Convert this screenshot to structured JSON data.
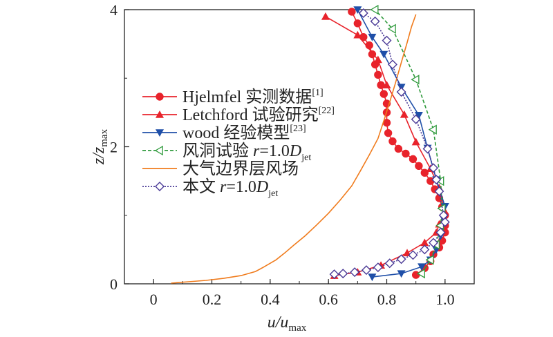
{
  "chart_data": {
    "type": "line",
    "xlabel": {
      "main": "u/u",
      "sub": "max"
    },
    "ylabel": {
      "main": "z/z",
      "sub": "max"
    },
    "xlim": [
      -0.1,
      1.1
    ],
    "ylim": [
      0,
      4
    ],
    "xticks": [
      "0",
      "0.2",
      "0.4",
      "0.6",
      "0.8",
      "1.0"
    ],
    "xtick_values": [
      0,
      0.2,
      0.4,
      0.6,
      0.8,
      1.0
    ],
    "yticks": [
      "0",
      "2",
      "4"
    ],
    "ytick_values": [
      0,
      2,
      4
    ],
    "grid": false,
    "legend_position": "left-middle",
    "series": [
      {
        "name": "Hjelmfel 实测数据",
        "sup": "[1]",
        "color": "#e8232b",
        "marker": "circle",
        "dash": "",
        "points": [
          [
            0.9,
            0.13
          ],
          [
            0.93,
            0.23
          ],
          [
            0.95,
            0.33
          ],
          [
            0.96,
            0.43
          ],
          [
            0.98,
            0.53
          ],
          [
            0.99,
            0.63
          ],
          [
            1.0,
            0.75
          ],
          [
            1.0,
            0.85
          ],
          [
            1.0,
            1.0
          ],
          [
            0.99,
            1.12
          ],
          [
            0.98,
            1.25
          ],
          [
            0.965,
            1.38
          ],
          [
            0.95,
            1.5
          ],
          [
            0.93,
            1.62
          ],
          [
            0.91,
            1.72
          ],
          [
            0.89,
            1.82
          ],
          [
            0.865,
            1.9
          ],
          [
            0.84,
            1.97
          ],
          [
            0.82,
            2.08
          ],
          [
            0.805,
            2.2
          ],
          [
            0.8,
            2.35
          ],
          [
            0.8,
            2.5
          ],
          [
            0.8,
            2.63
          ],
          [
            0.79,
            2.77
          ],
          [
            0.78,
            2.9
          ],
          [
            0.77,
            3.05
          ],
          [
            0.76,
            3.2
          ],
          [
            0.75,
            3.35
          ],
          [
            0.74,
            3.48
          ],
          [
            0.72,
            3.6
          ],
          [
            0.7,
            3.8
          ],
          [
            0.68,
            3.97
          ]
        ]
      },
      {
        "name": "Letchford 试验研究",
        "sup": "[22]",
        "color": "#e8232b",
        "marker": "triangle-up",
        "dash": "",
        "points": [
          [
            0.62,
            0.12
          ],
          [
            0.7,
            0.17
          ],
          [
            0.78,
            0.27
          ],
          [
            0.87,
            0.45
          ],
          [
            0.93,
            0.6
          ],
          [
            0.97,
            0.75
          ],
          [
            0.98,
            0.87
          ],
          [
            1.0,
            1.05
          ],
          [
            0.98,
            1.4
          ],
          [
            0.95,
            1.68
          ],
          [
            0.9,
            2.07
          ],
          [
            0.86,
            2.47
          ],
          [
            0.8,
            2.9
          ],
          [
            0.77,
            3.27
          ],
          [
            0.7,
            3.63
          ],
          [
            0.59,
            3.9
          ]
        ]
      },
      {
        "name": "wood 经验模型",
        "sup": "[23]",
        "color": "#1f4fa8",
        "marker": "triangle-down",
        "dash": "",
        "points": [
          [
            0.75,
            0.1
          ],
          [
            0.85,
            0.15
          ],
          [
            0.92,
            0.25
          ],
          [
            0.95,
            0.35
          ],
          [
            0.97,
            0.5
          ],
          [
            0.985,
            0.7
          ],
          [
            0.995,
            0.95
          ],
          [
            1.0,
            1.13
          ],
          [
            0.97,
            1.52
          ],
          [
            0.94,
            1.98
          ],
          [
            0.91,
            2.46
          ],
          [
            0.85,
            2.87
          ],
          [
            0.79,
            3.35
          ],
          [
            0.75,
            3.6
          ],
          [
            0.7,
            4.0
          ]
        ]
      },
      {
        "name": "风洞试验 ",
        "italic_part": "r",
        "tail": "=1.0",
        "tail_italic": "D",
        "sub": "jet",
        "color": "#2f9a3c",
        "marker": "triangle-left-open",
        "dash": "5,3",
        "points": [
          [
            0.92,
            0.15
          ],
          [
            0.95,
            0.35
          ],
          [
            0.97,
            0.57
          ],
          [
            0.985,
            0.85
          ],
          [
            0.99,
            1.1
          ],
          [
            0.985,
            1.5
          ],
          [
            0.96,
            2.25
          ],
          [
            0.9,
            2.98
          ],
          [
            0.82,
            3.72
          ],
          [
            0.76,
            4.0
          ]
        ]
      },
      {
        "name": "大气边界层风场",
        "color": "#f07b1c",
        "marker": "none",
        "dash": "",
        "points": [
          [
            0.06,
            0.01
          ],
          [
            0.12,
            0.03
          ],
          [
            0.18,
            0.05
          ],
          [
            0.24,
            0.08
          ],
          [
            0.3,
            0.12
          ],
          [
            0.35,
            0.18
          ],
          [
            0.38,
            0.25
          ],
          [
            0.42,
            0.35
          ],
          [
            0.45,
            0.45
          ],
          [
            0.48,
            0.56
          ],
          [
            0.52,
            0.7
          ],
          [
            0.56,
            0.86
          ],
          [
            0.6,
            1.03
          ],
          [
            0.64,
            1.22
          ],
          [
            0.68,
            1.43
          ],
          [
            0.71,
            1.65
          ],
          [
            0.74,
            1.88
          ],
          [
            0.77,
            2.12
          ],
          [
            0.79,
            2.38
          ],
          [
            0.81,
            2.65
          ],
          [
            0.83,
            2.93
          ],
          [
            0.85,
            3.23
          ],
          [
            0.87,
            3.52
          ],
          [
            0.885,
            3.75
          ],
          [
            0.9,
            3.93
          ]
        ]
      },
      {
        "name": "本文 ",
        "italic_part": "r",
        "tail": "=1.0",
        "tail_italic": "D",
        "sub": "jet",
        "color": "#4a3a96",
        "marker": "diamond-open",
        "dash": "2,2",
        "points": [
          [
            0.62,
            0.14
          ],
          [
            0.65,
            0.15
          ],
          [
            0.69,
            0.17
          ],
          [
            0.73,
            0.2
          ],
          [
            0.77,
            0.24
          ],
          [
            0.81,
            0.3
          ],
          [
            0.85,
            0.36
          ],
          [
            0.89,
            0.42
          ],
          [
            0.93,
            0.5
          ],
          [
            0.96,
            0.6
          ],
          [
            0.985,
            0.75
          ],
          [
            1.0,
            0.9
          ],
          [
            0.995,
            1.0
          ],
          [
            0.98,
            1.35
          ],
          [
            0.97,
            1.52
          ],
          [
            0.96,
            1.69
          ],
          [
            0.94,
            1.97
          ],
          [
            0.9,
            2.4
          ],
          [
            0.85,
            2.8
          ],
          [
            0.82,
            3.2
          ],
          [
            0.8,
            3.55
          ],
          [
            0.76,
            3.83
          ],
          [
            0.72,
            3.95
          ]
        ]
      }
    ]
  }
}
